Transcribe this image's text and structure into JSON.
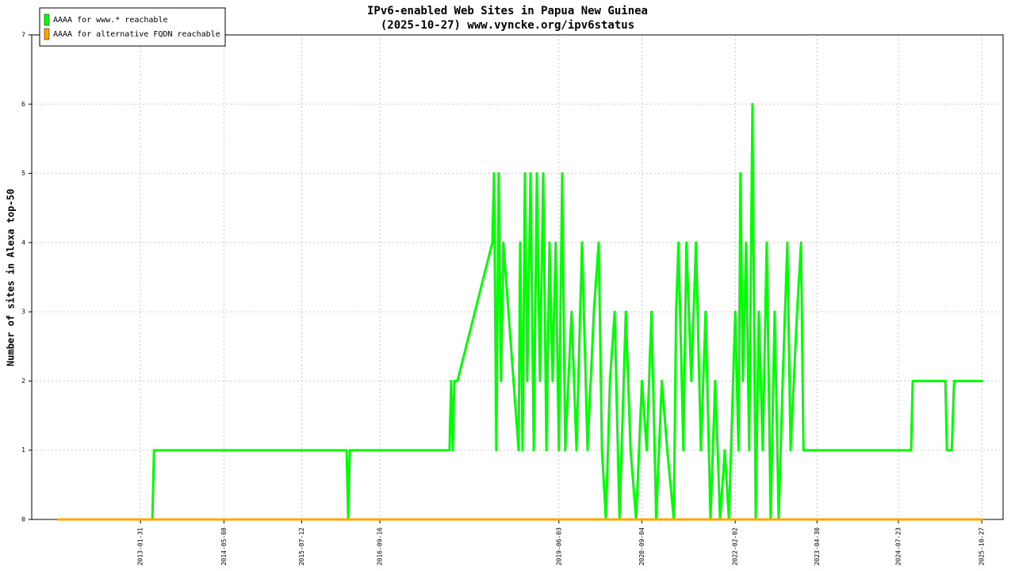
{
  "chart_data": {
    "type": "line",
    "title": "IPv6-enabled Web Sites in Papua New Guinea",
    "subtitle": "(2025-10-27) www.vyncke.org/ipv6status",
    "y_label": "Number of sites in Alexa top-50",
    "xlim": [
      "2011-06-10",
      "2026-02-22"
    ],
    "xticks": [
      "2013-01-31",
      "2014-05-08",
      "2015-07-12",
      "2016-09-16",
      "2019-06-03",
      "2020-09-04",
      "2022-02-02",
      "2023-04-30",
      "2024-07-23",
      "2025-10-27"
    ],
    "ylim": [
      0,
      7
    ],
    "yticks": [
      0,
      1,
      2,
      3,
      4,
      5,
      6,
      7
    ],
    "grid": true,
    "legend": "upper left",
    "series": [
      {
        "name": "AAAA for www.* reachable",
        "color": "#00ff00",
        "x": [
          "2011-10-28",
          "2013-04-07",
          "2013-04-16",
          "2016-03-16",
          "2016-03-25",
          "2016-04-03",
          "2017-10-06",
          "2017-10-15",
          "2017-10-24",
          "2017-11-02",
          "2017-11-19",
          "2018-05-31",
          "2018-06-09",
          "2018-06-22",
          "2018-07-05",
          "2018-07-18",
          "2018-07-31",
          "2018-10-23",
          "2018-11-01",
          "2018-11-14",
          "2018-11-27",
          "2018-12-10",
          "2018-12-28",
          "2019-01-15",
          "2019-02-01",
          "2019-02-18",
          "2019-03-08",
          "2019-03-26",
          "2019-04-12",
          "2019-04-29",
          "2019-05-16",
          "2019-06-03",
          "2019-06-21",
          "2019-07-08",
          "2019-08-12",
          "2019-09-08",
          "2019-10-09",
          "2019-11-08",
          "2019-12-13",
          "2020-01-09",
          "2020-01-27",
          "2020-02-18",
          "2020-03-11",
          "2020-04-06",
          "2020-05-03",
          "2020-06-07",
          "2020-07-03",
          "2020-08-03",
          "2020-09-04",
          "2020-09-30",
          "2020-10-27",
          "2020-11-22",
          "2020-12-23",
          "2021-01-22",
          "2021-02-27",
          "2021-03-12",
          "2021-03-25",
          "2021-04-21",
          "2021-05-08",
          "2021-06-04",
          "2021-06-30",
          "2021-07-27",
          "2021-08-22",
          "2021-09-18",
          "2021-10-14",
          "2021-11-10",
          "2021-12-06",
          "2021-12-29",
          "2022-02-02",
          "2022-02-20",
          "2022-03-03",
          "2022-03-16",
          "2022-04-03",
          "2022-04-20",
          "2022-05-08",
          "2022-05-26",
          "2022-06-12",
          "2022-07-04",
          "2022-07-26",
          "2022-08-17",
          "2022-09-08",
          "2022-09-30",
          "2022-10-22",
          "2022-11-17",
          "2022-12-05",
          "2023-01-10",
          "2023-02-01",
          "2023-02-14",
          "2024-10-01",
          "2024-10-10",
          "2025-04-09",
          "2025-04-17",
          "2025-05-14",
          "2025-05-27",
          "2025-11-05"
        ],
        "values": [
          0,
          0,
          1,
          1,
          0,
          1,
          1,
          2,
          1,
          2,
          2,
          4,
          5,
          1,
          5,
          2,
          4,
          1,
          4,
          1,
          5,
          2,
          5,
          1,
          5,
          2,
          5,
          1,
          4,
          2,
          4,
          1,
          5,
          1,
          3,
          1,
          4,
          1,
          3,
          4,
          1,
          0,
          2,
          3,
          0,
          3,
          1,
          0,
          2,
          1,
          3,
          0,
          2,
          1,
          0,
          3,
          4,
          1,
          4,
          2,
          4,
          1,
          3,
          0,
          2,
          0,
          1,
          0,
          3,
          1,
          5,
          2,
          4,
          1,
          6,
          0,
          3,
          1,
          4,
          0,
          3,
          0,
          2,
          4,
          1,
          3,
          4,
          1,
          1,
          2,
          2,
          1,
          1,
          2,
          2
        ]
      },
      {
        "name": "AAAA for alternative FQDN reachable",
        "color": "#ffa500",
        "x": [
          "2011-10-28",
          "2025-11-05"
        ],
        "values": [
          0,
          0
        ]
      }
    ]
  }
}
